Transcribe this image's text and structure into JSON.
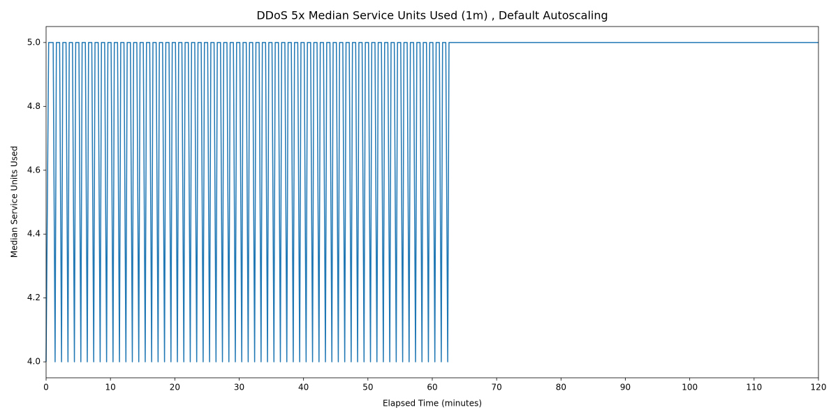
{
  "chart_data": {
    "type": "line",
    "title": "DDoS 5x Median Service Units Used (1m) , Default Autoscaling",
    "x_label": "Elapsed Time (minutes)",
    "y_label": "Median Service Units Used",
    "xlim": [
      0,
      120
    ],
    "xticks": [
      0,
      10,
      20,
      30,
      40,
      50,
      60,
      70,
      80,
      90,
      100,
      110,
      120
    ],
    "ylim": [
      3.95,
      5.05
    ],
    "yticks": [
      {
        "value": 4,
        "label": "4.0"
      },
      {
        "value": 4.2,
        "label": "4.2"
      },
      {
        "value": 4.4,
        "label": "4.4"
      },
      {
        "value": 4.6,
        "label": "4.6"
      },
      {
        "value": 4.8,
        "label": "4.8"
      },
      {
        "value": 5,
        "label": "5.0"
      }
    ],
    "series": [
      {
        "name": "Median Service Units Used",
        "color": "#1f77b4",
        "x": [
          0,
          0.4,
          1.1,
          1.4,
          1.6,
          2.1,
          2.4,
          2.6,
          3.1,
          3.4,
          3.6,
          4.1,
          4.4,
          4.6,
          5.1,
          5.4,
          5.6,
          6.1,
          6.4,
          6.6,
          7.1,
          7.4,
          7.6,
          8.1,
          8.4,
          8.6,
          9.1,
          9.4,
          9.6,
          10.1,
          10.4,
          10.6,
          11.1,
          11.4,
          11.6,
          12.1,
          12.4,
          12.6,
          13.1,
          13.4,
          13.6,
          14.1,
          14.4,
          14.6,
          15.1,
          15.4,
          15.6,
          16.1,
          16.4,
          16.6,
          17.1,
          17.4,
          17.6,
          18.1,
          18.4,
          18.6,
          19.1,
          19.4,
          19.6,
          20.1,
          20.4,
          20.6,
          21.1,
          21.4,
          21.6,
          22.1,
          22.4,
          22.6,
          23.1,
          23.4,
          23.6,
          24.1,
          24.4,
          24.6,
          25.1,
          25.4,
          25.6,
          26.1,
          26.4,
          26.6,
          27.1,
          27.4,
          27.6,
          28.1,
          28.4,
          28.6,
          29.1,
          29.4,
          29.6,
          30.1,
          30.4,
          30.6,
          31.1,
          31.4,
          31.6,
          32.1,
          32.4,
          32.6,
          33.1,
          33.4,
          33.6,
          34.1,
          34.4,
          34.6,
          35.1,
          35.4,
          35.6,
          36.1,
          36.4,
          36.6,
          37.1,
          37.4,
          37.6,
          38.1,
          38.4,
          38.6,
          39.1,
          39.4,
          39.6,
          40.1,
          40.4,
          40.6,
          41.1,
          41.4,
          41.6,
          42.1,
          42.4,
          42.6,
          43.1,
          43.4,
          43.6,
          44.1,
          44.4,
          44.6,
          45.1,
          45.4,
          45.6,
          46.1,
          46.4,
          46.6,
          47.1,
          47.4,
          47.6,
          48.1,
          48.4,
          48.6,
          49.1,
          49.4,
          49.6,
          50.1,
          50.4,
          50.6,
          51.1,
          51.4,
          51.6,
          52.1,
          52.4,
          52.6,
          53.1,
          53.4,
          53.6,
          54.1,
          54.4,
          54.6,
          55.1,
          55.4,
          55.6,
          56.1,
          56.4,
          56.6,
          57.1,
          57.4,
          57.6,
          58.1,
          58.4,
          58.6,
          59.1,
          59.4,
          59.6,
          60.1,
          60.4,
          60.6,
          61.1,
          61.4,
          61.6,
          62.1,
          62.4,
          62.6,
          120
        ],
        "values": [
          4,
          5,
          5,
          4,
          5,
          5,
          4,
          5,
          5,
          4,
          5,
          5,
          4,
          5,
          5,
          4,
          5,
          5,
          4,
          5,
          5,
          4,
          5,
          5,
          4,
          5,
          5,
          4,
          5,
          5,
          4,
          5,
          5,
          4,
          5,
          5,
          4,
          5,
          5,
          4,
          5,
          5,
          4,
          5,
          5,
          4,
          5,
          5,
          4,
          5,
          5,
          4,
          5,
          5,
          4,
          5,
          5,
          4,
          5,
          5,
          4,
          5,
          5,
          4,
          5,
          5,
          4,
          5,
          5,
          4,
          5,
          5,
          4,
          5,
          5,
          4,
          5,
          5,
          4,
          5,
          5,
          4,
          5,
          5,
          4,
          5,
          5,
          4,
          5,
          5,
          4,
          5,
          5,
          4,
          5,
          5,
          4,
          5,
          5,
          4,
          5,
          5,
          4,
          5,
          5,
          4,
          5,
          5,
          4,
          5,
          5,
          4,
          5,
          5,
          4,
          5,
          5,
          4,
          5,
          5,
          4,
          5,
          5,
          4,
          5,
          5,
          4,
          5,
          5,
          4,
          5,
          5,
          4,
          5,
          5,
          4,
          5,
          5,
          4,
          5,
          5,
          4,
          5,
          5,
          4,
          5,
          5,
          4,
          5,
          5,
          4,
          5,
          5,
          4,
          5,
          5,
          4,
          5,
          5,
          4,
          5,
          5,
          4,
          5,
          5,
          4,
          5,
          5,
          4,
          5,
          5,
          4,
          5,
          5,
          4,
          5,
          5,
          4,
          5,
          5,
          4,
          5,
          5,
          4,
          5,
          5,
          4,
          5,
          5
        ]
      }
    ]
  }
}
